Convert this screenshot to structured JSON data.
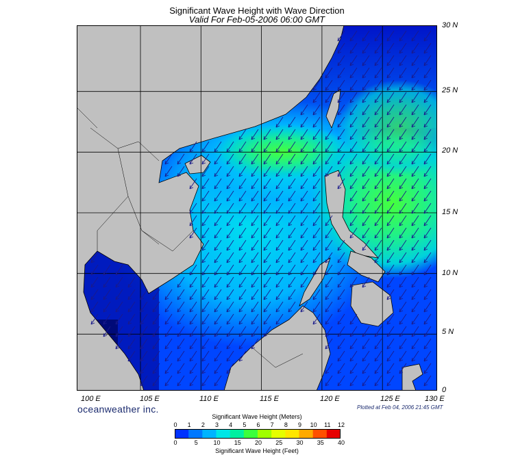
{
  "header": {
    "title": "Significant Wave Height with Wave Direction",
    "subtitle": "Valid For Feb-05-2006 06:00 GMT"
  },
  "map": {
    "lat_labels": [
      "30 N",
      "25 N",
      "20 N",
      "15 N",
      "10 N",
      "5 N",
      "0"
    ],
    "lon_labels": [
      "100 E",
      "105 E",
      "110 E",
      "115 E",
      "120 E",
      "125 E",
      "130 E"
    ],
    "extent": {
      "lon_min": 99,
      "lon_max": 130,
      "lat_min": 0,
      "lat_max": 30
    },
    "wind_direction": "from north-east toward south-west",
    "colors": {
      "land": "#c0c0c0",
      "deep_low": "#000a8c",
      "low": "#0033ff",
      "mid": "#00b4ff",
      "high": "#00e6a0",
      "peak": "#3cff3c",
      "arrow": "#1a1a8a"
    }
  },
  "footer": {
    "brand": "oceanweather inc.",
    "plotted": "Plotted at Feb 04, 2006 21:45 GMT"
  },
  "colorbar": {
    "title_top": "Significant Wave Height (Meters)",
    "title_bottom": "Significant Wave Height (Feet)",
    "meters": [
      "0",
      "1",
      "2",
      "3",
      "4",
      "5",
      "6",
      "7",
      "8",
      "9",
      "10",
      "11",
      "12"
    ],
    "feet": [
      "0",
      "5",
      "10",
      "15",
      "20",
      "25",
      "30",
      "35",
      "40"
    ],
    "colors": [
      "#0000c8",
      "#0032ff",
      "#0078ff",
      "#00b4ff",
      "#00e6e6",
      "#00f0a0",
      "#3cff3c",
      "#a0ff00",
      "#e6ff00",
      "#ffe600",
      "#ffaa00",
      "#ff5000",
      "#e60000"
    ]
  }
}
